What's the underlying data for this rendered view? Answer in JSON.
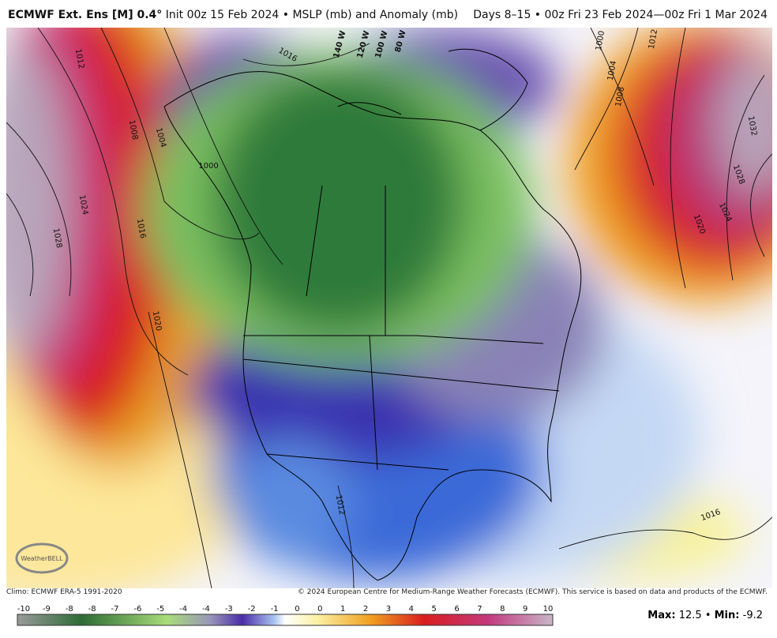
{
  "header": {
    "title_bold": "ECMWF Ext. Ens [M] 0.4°",
    "title_rest": "Init 00z 15 Feb 2024 • MSLP (mb) and Anomaly (mb)",
    "valid": "Days 8–15 • 00z Fri 23 Feb 2024—00z Fri 1 Mar 2024"
  },
  "map": {
    "contour_labels": [
      "1012",
      "1008",
      "1004",
      "1000",
      "1016",
      "1024",
      "1028",
      "1016",
      "1020",
      "1000",
      "1012",
      "1004",
      "1008",
      "1032",
      "1028",
      "1024",
      "1020",
      "1012",
      "1016"
    ],
    "longitude_labels": [
      "140 W",
      "120 W",
      "100 W",
      "80 W"
    ],
    "logo": "WeatherBELL"
  },
  "footer": {
    "climo": "Climo: ECMWF ERA-5 1991-2020",
    "copyright": "© 2024 European Centre for Medium-Range Weather Forecasts (ECMWF). This service is based on data and products of the ECMWF."
  },
  "colorbar": {
    "labels": [
      "-10",
      "-9",
      "-8",
      "-8",
      "-7",
      "-6",
      "-5",
      "-4",
      "-4",
      "-3",
      "-2",
      "-1",
      "0",
      "0",
      "1",
      "2",
      "3",
      "4",
      "5",
      "6",
      "7",
      "8",
      "9",
      "10"
    ]
  },
  "stats": {
    "max_label": "Max:",
    "max": 12.5,
    "sep": "•",
    "min_label": "Min:",
    "min": -9.2
  }
}
